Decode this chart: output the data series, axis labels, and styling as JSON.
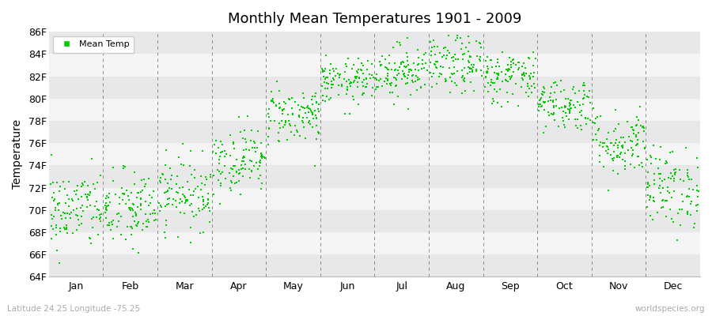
{
  "title": "Monthly Mean Temperatures 1901 - 2009",
  "ylabel": "Temperature",
  "subtitle_left": "Latitude 24.25 Longitude -75.25",
  "subtitle_right": "worldspecies.org",
  "ylim": [
    64,
    86
  ],
  "yticks": [
    64,
    66,
    68,
    70,
    72,
    74,
    76,
    78,
    80,
    82,
    84,
    86
  ],
  "ytick_labels": [
    "64F",
    "66F",
    "68F",
    "70F",
    "72F",
    "74F",
    "76F",
    "78F",
    "80F",
    "82F",
    "84F",
    "86F"
  ],
  "months": [
    "Jan",
    "Feb",
    "Mar",
    "Apr",
    "May",
    "Jun",
    "Jul",
    "Aug",
    "Sep",
    "Oct",
    "Nov",
    "Dec"
  ],
  "dot_color": "#00CC00",
  "dot_size": 3,
  "background_color": "#ffffff",
  "band_colors": [
    "#e8e8e8",
    "#f4f4f4",
    "#e8e8e8",
    "#f4f4f4",
    "#e8e8e8",
    "#f4f4f4",
    "#e8e8e8",
    "#f4f4f4",
    "#e8e8e8",
    "#f4f4f4",
    "#e8e8e8"
  ],
  "dashed_line_color": "#888888",
  "legend_label": "Mean Temp",
  "n_years": 109,
  "monthly_means": [
    70.0,
    70.0,
    71.5,
    74.5,
    78.5,
    81.5,
    82.5,
    83.0,
    82.0,
    79.5,
    76.0,
    72.0
  ],
  "monthly_stds": [
    1.8,
    1.8,
    1.6,
    1.5,
    1.3,
    1.0,
    1.2,
    1.3,
    1.2,
    1.2,
    1.5,
    1.8
  ],
  "month_tick_positions": [
    0.5,
    1.5,
    2.5,
    3.5,
    4.5,
    5.5,
    6.5,
    7.5,
    8.5,
    9.5,
    10.5,
    11.5
  ],
  "vline_positions": [
    1,
    2,
    3,
    4,
    5,
    6,
    7,
    8,
    9,
    10,
    11
  ]
}
